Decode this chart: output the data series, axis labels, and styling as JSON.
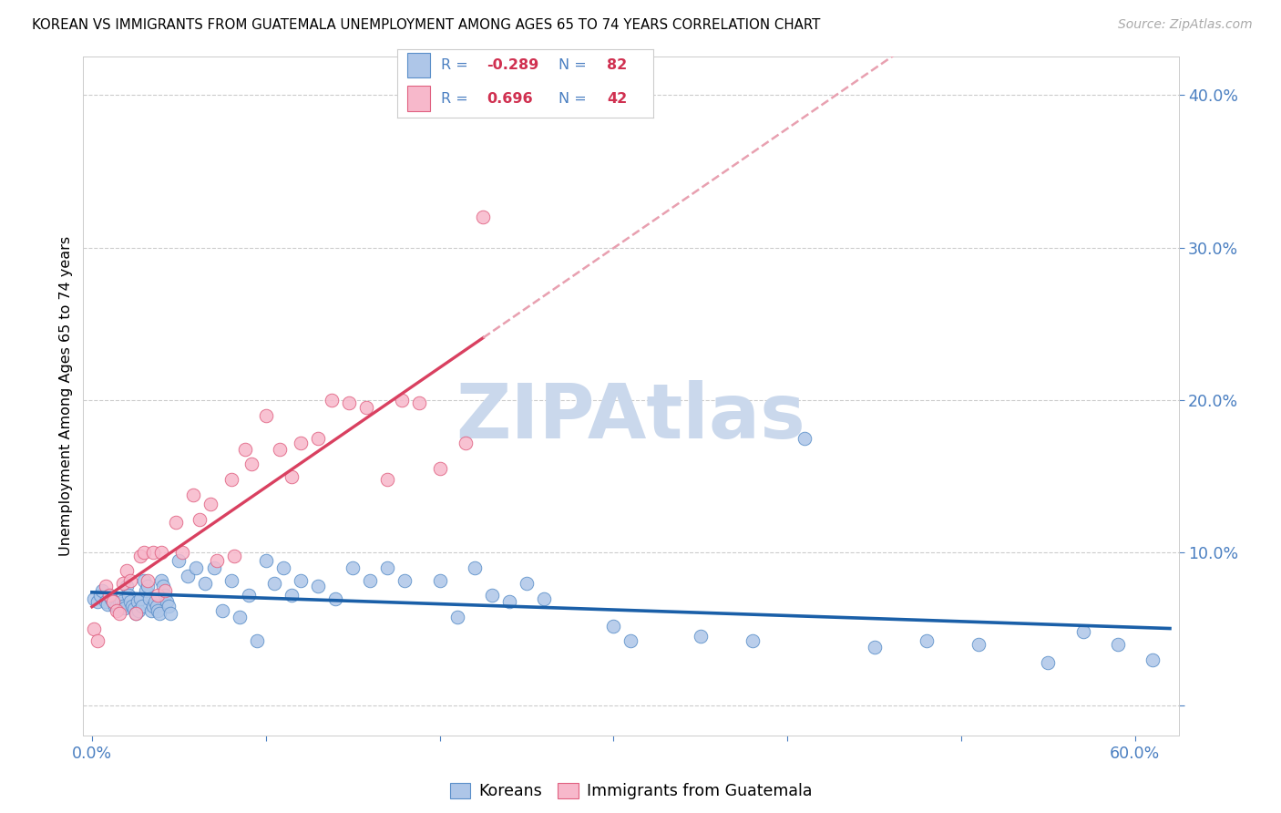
{
  "title": "KOREAN VS IMMIGRANTS FROM GUATEMALA UNEMPLOYMENT AMONG AGES 65 TO 74 YEARS CORRELATION CHART",
  "source": "Source: ZipAtlas.com",
  "ylabel": "Unemployment Among Ages 65 to 74 years",
  "xlim": [
    -0.005,
    0.625
  ],
  "ylim": [
    -0.02,
    0.425
  ],
  "ytick_positions": [
    0.0,
    0.1,
    0.2,
    0.3,
    0.4
  ],
  "ytick_labels": [
    "",
    "10.0%",
    "20.0%",
    "30.0%",
    "40.0%"
  ],
  "xtick_positions": [
    0.0,
    0.1,
    0.2,
    0.3,
    0.4,
    0.5,
    0.6
  ],
  "xtick_labels": [
    "0.0%",
    "",
    "",
    "",
    "",
    "",
    "60.0%"
  ],
  "legend_R1": "-0.289",
  "legend_N1": "82",
  "legend_R2": "0.696",
  "legend_N2": "42",
  "korean_fill": "#aec6e8",
  "korean_edge": "#5b8fc9",
  "guate_fill": "#f7b8cb",
  "guate_edge": "#e06080",
  "korean_line": "#1a5fa8",
  "guate_line": "#d94060",
  "guate_dash": "#e8a0b0",
  "watermark": "#cad8ec",
  "text_blue": "#4a7fc1",
  "text_red": "#d03050",
  "korean_x": [
    0.001,
    0.003,
    0.005,
    0.006,
    0.008,
    0.009,
    0.01,
    0.011,
    0.012,
    0.013,
    0.014,
    0.015,
    0.016,
    0.017,
    0.018,
    0.019,
    0.02,
    0.021,
    0.022,
    0.023,
    0.024,
    0.025,
    0.026,
    0.027,
    0.028,
    0.029,
    0.03,
    0.031,
    0.032,
    0.033,
    0.034,
    0.035,
    0.036,
    0.037,
    0.038,
    0.039,
    0.04,
    0.041,
    0.042,
    0.043,
    0.044,
    0.045,
    0.05,
    0.055,
    0.06,
    0.065,
    0.07,
    0.075,
    0.08,
    0.085,
    0.09,
    0.095,
    0.1,
    0.105,
    0.11,
    0.115,
    0.12,
    0.13,
    0.14,
    0.15,
    0.16,
    0.17,
    0.18,
    0.2,
    0.21,
    0.22,
    0.23,
    0.24,
    0.25,
    0.26,
    0.3,
    0.31,
    0.35,
    0.38,
    0.41,
    0.45,
    0.48,
    0.51,
    0.55,
    0.57,
    0.59,
    0.61
  ],
  "korean_y": [
    0.07,
    0.068,
    0.072,
    0.075,
    0.068,
    0.066,
    0.072,
    0.07,
    0.068,
    0.065,
    0.065,
    0.063,
    0.067,
    0.068,
    0.065,
    0.064,
    0.078,
    0.072,
    0.068,
    0.065,
    0.063,
    0.06,
    0.068,
    0.062,
    0.07,
    0.065,
    0.082,
    0.075,
    0.078,
    0.07,
    0.062,
    0.065,
    0.068,
    0.065,
    0.062,
    0.06,
    0.082,
    0.078,
    0.072,
    0.068,
    0.065,
    0.06,
    0.095,
    0.085,
    0.09,
    0.08,
    0.09,
    0.062,
    0.082,
    0.058,
    0.072,
    0.042,
    0.095,
    0.08,
    0.09,
    0.072,
    0.082,
    0.078,
    0.07,
    0.09,
    0.082,
    0.09,
    0.082,
    0.082,
    0.058,
    0.09,
    0.072,
    0.068,
    0.08,
    0.07,
    0.052,
    0.042,
    0.045,
    0.042,
    0.175,
    0.038,
    0.042,
    0.04,
    0.028,
    0.048,
    0.04,
    0.03
  ],
  "guate_x": [
    0.001,
    0.003,
    0.008,
    0.01,
    0.012,
    0.014,
    0.016,
    0.018,
    0.02,
    0.022,
    0.025,
    0.028,
    0.03,
    0.032,
    0.035,
    0.038,
    0.04,
    0.042,
    0.048,
    0.052,
    0.058,
    0.062,
    0.068,
    0.072,
    0.08,
    0.082,
    0.088,
    0.092,
    0.1,
    0.108,
    0.115,
    0.12,
    0.13,
    0.138,
    0.148,
    0.158,
    0.17,
    0.178,
    0.188,
    0.2,
    0.215,
    0.225
  ],
  "guate_y": [
    0.05,
    0.042,
    0.078,
    0.072,
    0.068,
    0.062,
    0.06,
    0.08,
    0.088,
    0.082,
    0.06,
    0.098,
    0.1,
    0.082,
    0.1,
    0.072,
    0.1,
    0.075,
    0.12,
    0.1,
    0.138,
    0.122,
    0.132,
    0.095,
    0.148,
    0.098,
    0.168,
    0.158,
    0.19,
    0.168,
    0.15,
    0.172,
    0.175,
    0.2,
    0.198,
    0.195,
    0.148,
    0.2,
    0.198,
    0.155,
    0.172,
    0.32
  ]
}
